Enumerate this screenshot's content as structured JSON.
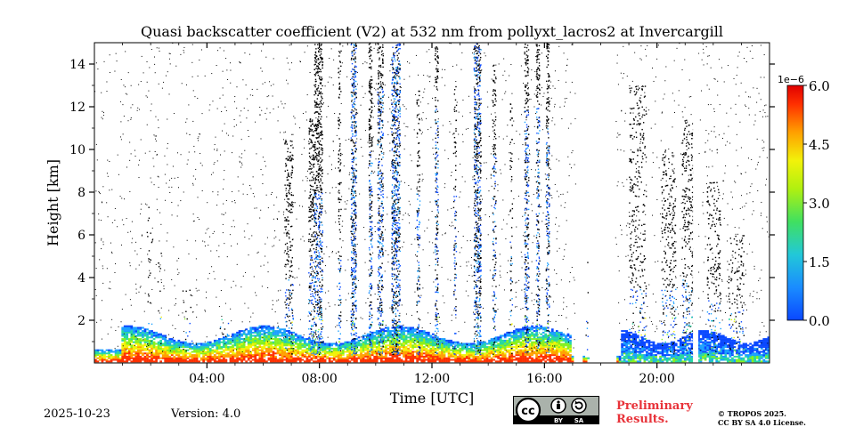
{
  "chart_data": {
    "type": "heatmap",
    "title": "Quasi backscatter coefficient (V2) at 532 nm from pollyxt_lacros2 at Invercargill",
    "xlabel": "Time [UTC]",
    "ylabel": "Height [km]",
    "xlim": [
      0,
      24
    ],
    "ylim": [
      0,
      15
    ],
    "x_ticks": [
      {
        "value": 4,
        "label": "04:00"
      },
      {
        "value": 8,
        "label": "08:00"
      },
      {
        "value": 12,
        "label": "12:00"
      },
      {
        "value": 16,
        "label": "16:00"
      },
      {
        "value": 20,
        "label": "20:00"
      }
    ],
    "y_ticks": [
      {
        "value": 2,
        "label": "2"
      },
      {
        "value": 4,
        "label": "4"
      },
      {
        "value": 6,
        "label": "6"
      },
      {
        "value": 8,
        "label": "8"
      },
      {
        "value": 10,
        "label": "10"
      },
      {
        "value": 12,
        "label": "12"
      },
      {
        "value": 14,
        "label": "14"
      }
    ],
    "colorbar": {
      "min": 0.0,
      "max": 6.0,
      "multiplier": "1e−6",
      "ticks": [
        {
          "value": 0.0,
          "label": "0.0"
        },
        {
          "value": 1.5,
          "label": "1.5"
        },
        {
          "value": 3.0,
          "label": "3.0"
        },
        {
          "value": 4.5,
          "label": "4.5"
        },
        {
          "value": 6.0,
          "label": "6.0"
        }
      ],
      "colors": [
        "#0a48ff",
        "#1aa0ff",
        "#28d8a0",
        "#86f020",
        "#f2f20a",
        "#ffa000",
        "#ff3000",
        "#e00000"
      ]
    },
    "cloud_columns": [
      {
        "t": 1.95,
        "w": 0.2,
        "top": 7.5,
        "density": 0.25,
        "dark": 2.6
      },
      {
        "t": 2.3,
        "w": 0.15,
        "top": 5.5,
        "density": 0.2,
        "dark": 2.2
      },
      {
        "t": 3.3,
        "w": 0.35,
        "top": 3.5,
        "density": 0.25,
        "dark": 2.0
      },
      {
        "t": 4.6,
        "w": 0.3,
        "top": 3.0,
        "density": 0.2,
        "dark": 2.0
      },
      {
        "t": 6.9,
        "w": 0.3,
        "top": 10.5,
        "density": 0.55,
        "dark": 4.0
      },
      {
        "t": 7.7,
        "w": 0.2,
        "top": 11.5,
        "density": 0.65,
        "dark": 5.0
      },
      {
        "t": 7.95,
        "w": 0.3,
        "top": 15.0,
        "density": 0.75,
        "dark": 8.0
      },
      {
        "t": 8.7,
        "w": 0.1,
        "top": 15.0,
        "density": 0.6,
        "dark": 5.0
      },
      {
        "t": 9.2,
        "w": 0.2,
        "top": 15.0,
        "density": 0.85,
        "dark": 15.0
      },
      {
        "t": 9.8,
        "w": 0.12,
        "top": 15.0,
        "density": 0.8,
        "dark": 10.0
      },
      {
        "t": 10.15,
        "w": 0.2,
        "top": 15.0,
        "density": 0.75,
        "dark": 13.0
      },
      {
        "t": 10.7,
        "w": 0.3,
        "top": 15.0,
        "density": 0.85,
        "dark": 15.0
      },
      {
        "t": 11.5,
        "w": 0.12,
        "top": 13.0,
        "density": 0.6,
        "dark": 8.0
      },
      {
        "t": 12.15,
        "w": 0.12,
        "top": 15.0,
        "density": 0.7,
        "dark": 12.0
      },
      {
        "t": 12.8,
        "w": 0.1,
        "top": 13.0,
        "density": 0.55,
        "dark": 8.0
      },
      {
        "t": 13.6,
        "w": 0.25,
        "top": 15.0,
        "density": 0.85,
        "dark": 15.0
      },
      {
        "t": 14.2,
        "w": 0.12,
        "top": 14.0,
        "density": 0.65,
        "dark": 10.0
      },
      {
        "t": 14.8,
        "w": 0.08,
        "top": 12.5,
        "density": 0.5,
        "dark": 6.0
      },
      {
        "t": 15.35,
        "w": 0.15,
        "top": 15.0,
        "density": 0.75,
        "dark": 12.0
      },
      {
        "t": 15.75,
        "w": 0.12,
        "top": 15.0,
        "density": 0.75,
        "dark": 12.0
      },
      {
        "t": 16.1,
        "w": 0.12,
        "top": 15.0,
        "density": 0.75,
        "dark": 11.0
      },
      {
        "t": 17.5,
        "w": 0.1,
        "top": 5.0,
        "density": 0.3,
        "dark": 3.0
      },
      {
        "t": 19.3,
        "w": 0.6,
        "top": 13.0,
        "density": 0.4,
        "dark": 3.5
      },
      {
        "t": 20.4,
        "w": 0.5,
        "top": 10.0,
        "density": 0.45,
        "dark": 3.5
      },
      {
        "t": 21.15,
        "w": 0.55,
        "top": 11.5,
        "density": 0.55,
        "dark": 4.0
      },
      {
        "t": 22.0,
        "w": 0.5,
        "top": 8.5,
        "density": 0.45,
        "dark": 3.0
      },
      {
        "t": 22.8,
        "w": 0.55,
        "top": 6.0,
        "density": 0.4,
        "dark": 2.5
      }
    ]
  },
  "footer": {
    "date": "2025-10-23",
    "version": "Version: 4.0",
    "preliminary_line1": "Preliminary",
    "preliminary_line2": "Results.",
    "copyright_line1": "© TROPOS 2025.",
    "copyright_line2": "CC BY SA 4.0 License.",
    "license_badge": {
      "by": "BY",
      "sa": "SA"
    }
  }
}
